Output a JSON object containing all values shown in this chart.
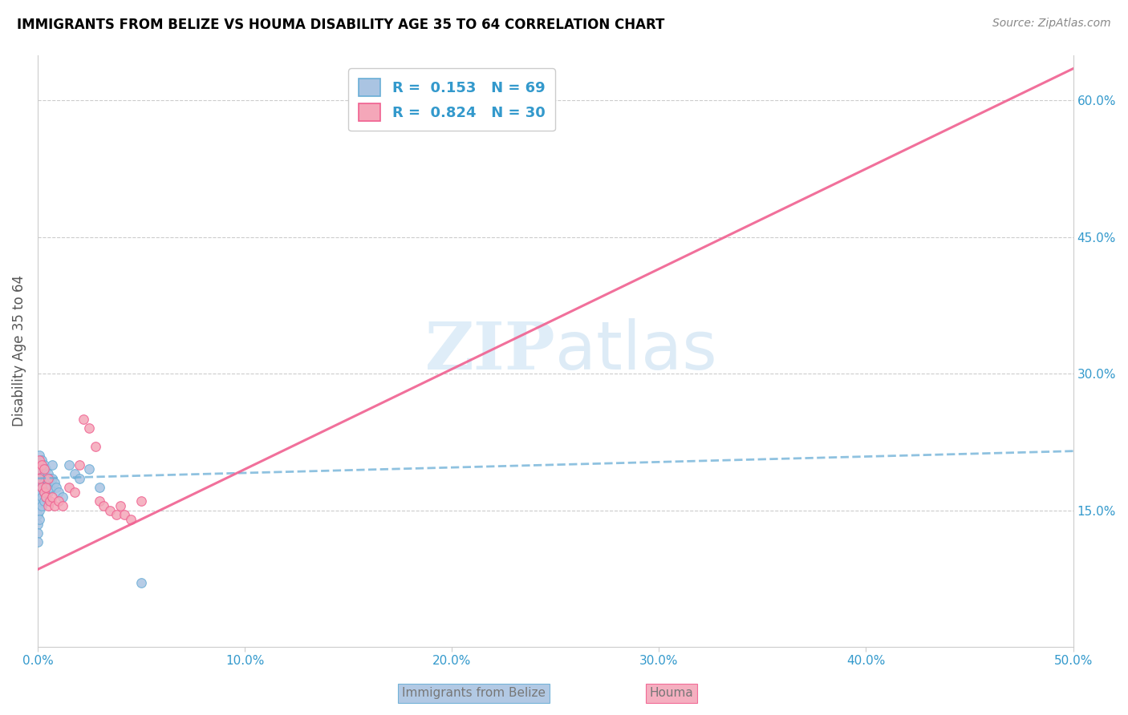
{
  "title": "IMMIGRANTS FROM BELIZE VS HOUMA DISABILITY AGE 35 TO 64 CORRELATION CHART",
  "source": "Source: ZipAtlas.com",
  "ylabel": "Disability Age 35 to 64",
  "xlim": [
    0.0,
    0.5
  ],
  "ylim": [
    0.0,
    0.65
  ],
  "xticks": [
    0.0,
    0.1,
    0.2,
    0.3,
    0.4,
    0.5
  ],
  "xticklabels": [
    "0.0%",
    "10.0%",
    "20.0%",
    "30.0%",
    "40.0%",
    "50.0%"
  ],
  "yticks_right": [
    0.15,
    0.3,
    0.45,
    0.6
  ],
  "ytick_labels_right": [
    "15.0%",
    "30.0%",
    "45.0%",
    "60.0%"
  ],
  "watermark": "ZIPatlas",
  "belize_color": "#aac4e2",
  "houma_color": "#f4a7b9",
  "belize_line_color": "#6aaed6",
  "houma_line_color": "#f06090",
  "belize_scatter_x": [
    0.0,
    0.0,
    0.0,
    0.0,
    0.0,
    0.0,
    0.0,
    0.0,
    0.0,
    0.0,
    0.001,
    0.001,
    0.001,
    0.001,
    0.001,
    0.001,
    0.001,
    0.001,
    0.002,
    0.002,
    0.002,
    0.002,
    0.002,
    0.002,
    0.003,
    0.003,
    0.003,
    0.003,
    0.003,
    0.004,
    0.004,
    0.004,
    0.004,
    0.005,
    0.005,
    0.005,
    0.006,
    0.006,
    0.007,
    0.007,
    0.008,
    0.009,
    0.01,
    0.012,
    0.015,
    0.018,
    0.02,
    0.025,
    0.03,
    0.05
  ],
  "belize_scatter_y": [
    0.2,
    0.195,
    0.185,
    0.175,
    0.165,
    0.155,
    0.145,
    0.135,
    0.125,
    0.115,
    0.21,
    0.2,
    0.19,
    0.18,
    0.17,
    0.16,
    0.15,
    0.14,
    0.205,
    0.195,
    0.185,
    0.175,
    0.165,
    0.155,
    0.2,
    0.19,
    0.18,
    0.17,
    0.16,
    0.195,
    0.185,
    0.175,
    0.165,
    0.19,
    0.18,
    0.17,
    0.185,
    0.175,
    0.2,
    0.185,
    0.18,
    0.175,
    0.17,
    0.165,
    0.2,
    0.19,
    0.185,
    0.195,
    0.175,
    0.07
  ],
  "houma_scatter_x": [
    0.0,
    0.001,
    0.001,
    0.002,
    0.002,
    0.003,
    0.003,
    0.004,
    0.004,
    0.005,
    0.005,
    0.006,
    0.007,
    0.008,
    0.01,
    0.012,
    0.015,
    0.018,
    0.02,
    0.022,
    0.025,
    0.028,
    0.03,
    0.032,
    0.035,
    0.038,
    0.04,
    0.042,
    0.045,
    0.05
  ],
  "houma_scatter_y": [
    0.195,
    0.205,
    0.185,
    0.2,
    0.175,
    0.195,
    0.17,
    0.175,
    0.165,
    0.185,
    0.155,
    0.16,
    0.165,
    0.155,
    0.16,
    0.155,
    0.175,
    0.17,
    0.2,
    0.25,
    0.24,
    0.22,
    0.16,
    0.155,
    0.15,
    0.145,
    0.155,
    0.145,
    0.14,
    0.16
  ],
  "belize_trendline_x": [
    0.0,
    0.5
  ],
  "belize_trendline_y": [
    0.185,
    0.215
  ],
  "houma_trendline_x": [
    0.0,
    0.5
  ],
  "houma_trendline_y": [
    0.085,
    0.635
  ]
}
